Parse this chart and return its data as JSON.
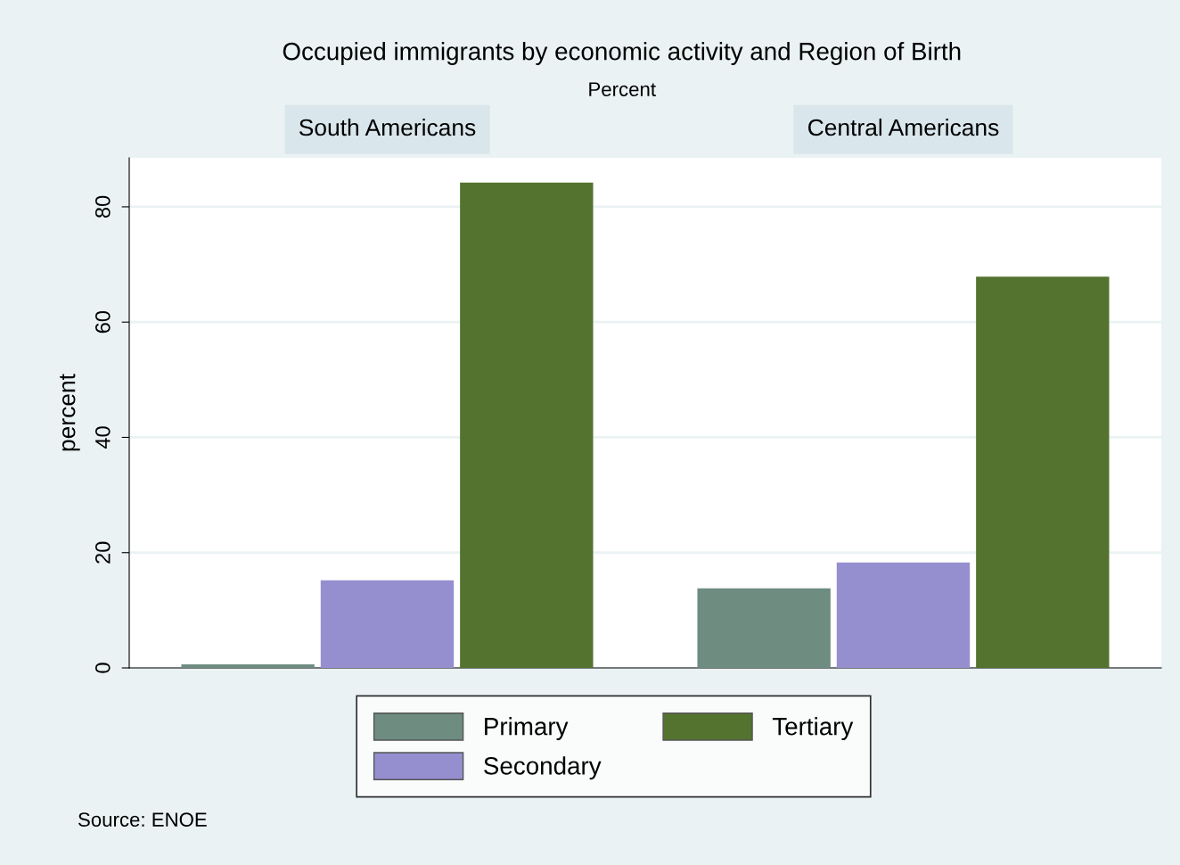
{
  "chart_data": {
    "type": "bar",
    "title": "Occupied immigrants by economic activity and Region of Birth",
    "subtitle": "Percent",
    "ylabel": "percent",
    "categories": [
      "South Americans",
      "Central Americans"
    ],
    "series": [
      {
        "name": "Primary",
        "color": "#6e8c80",
        "values": [
          0.6,
          13.8
        ]
      },
      {
        "name": "Secondary",
        "color": "#958fd0",
        "values": [
          15.2,
          18.3
        ]
      },
      {
        "name": "Tertiary",
        "color": "#54732e",
        "values": [
          84.2,
          67.9
        ]
      }
    ],
    "ylim": [
      0,
      88.5
    ],
    "yticks": [
      0,
      20,
      40,
      60,
      80
    ],
    "grid": "y",
    "legend": "bottom",
    "annotations": [
      "Source: ENOE"
    ]
  }
}
